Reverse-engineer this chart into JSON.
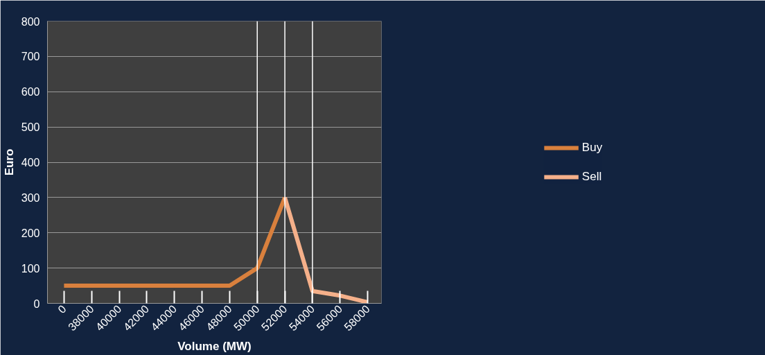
{
  "chart_data": {
    "type": "line",
    "xlabel": "Volume (MW)",
    "ylabel": "Euro",
    "categories": [
      "0",
      "38000",
      "40000",
      "42000",
      "44000",
      "46000",
      "48000",
      "50000",
      "52000",
      "54000",
      "56000",
      "58000"
    ],
    "series": [
      {
        "name": "Buy",
        "color": "#d9803d",
        "values": [
          50,
          50,
          50,
          50,
          50,
          50,
          50,
          100,
          300,
          null,
          null,
          null
        ]
      },
      {
        "name": "Sell",
        "color": "#f5b08a",
        "values": [
          null,
          null,
          null,
          null,
          null,
          null,
          null,
          null,
          300,
          35,
          22,
          3
        ]
      }
    ],
    "ylim": [
      0,
      800
    ],
    "yticks": [
      0,
      100,
      200,
      300,
      400,
      500,
      600,
      700,
      800
    ],
    "grid": "y",
    "legend": "right",
    "marker": "none",
    "line_style": "solid",
    "ref_lines": [
      {
        "axis": "x",
        "value": "50000",
        "color": "#ffffff"
      },
      {
        "axis": "x",
        "value": "52000",
        "color": "#ffffff"
      },
      {
        "axis": "x",
        "value": "54000",
        "color": "#ffffff"
      }
    ]
  }
}
